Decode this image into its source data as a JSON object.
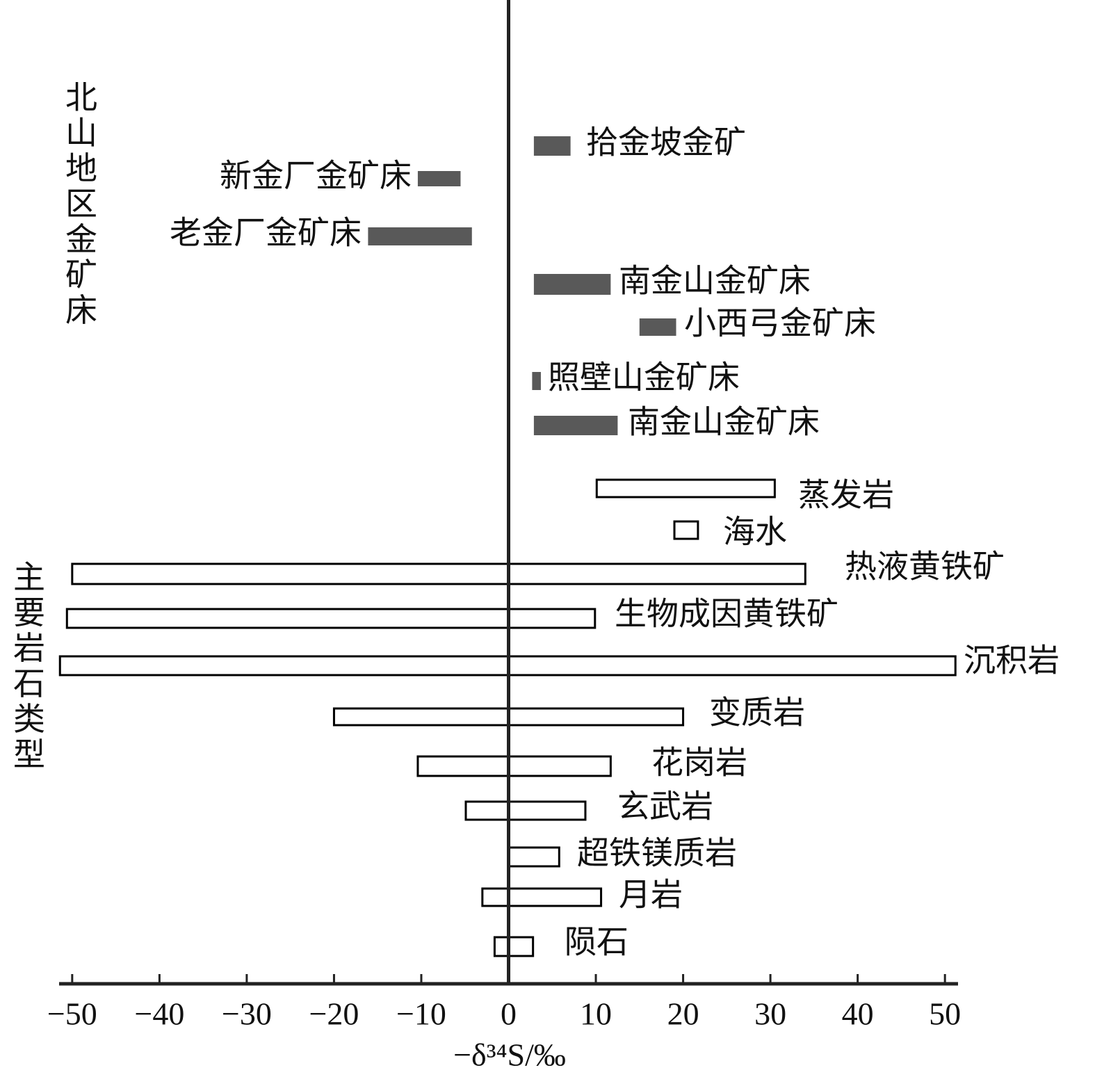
{
  "chart_data": {
    "type": "range-bar",
    "xlabel": "−δ³⁴S/‰",
    "xlim": [
      -51.5,
      51.5
    ],
    "xticks": [
      {
        "value": -50,
        "label": "−50"
      },
      {
        "value": -40,
        "label": "−40"
      },
      {
        "value": -30,
        "label": "−30"
      },
      {
        "value": -20,
        "label": "−20"
      },
      {
        "value": -10,
        "label": "−10"
      },
      0,
      10,
      20,
      30,
      40,
      50
    ],
    "groups": [
      {
        "name": "北山地区金矿床",
        "style": "filled",
        "color": "#595959",
        "items": [
          {
            "label": "拾金坡金矿",
            "low": 2.9,
            "high": 7.1
          },
          {
            "label": "新金厂金矿床",
            "low": -10.4,
            "high": -5.5
          },
          {
            "label": "老金厂金矿床",
            "low": -16.1,
            "high": -4.2
          },
          {
            "label": "南金山金矿床",
            "low": 2.9,
            "high": 11.7
          },
          {
            "label": "小西弓金矿床",
            "low": 15.0,
            "high": 19.2
          },
          {
            "label": "照壁山金矿床",
            "low": 2.7,
            "high": 3.7
          },
          {
            "label": "南金山金矿床",
            "low": 2.9,
            "high": 12.5
          }
        ]
      },
      {
        "name": "主要岩石类型",
        "style": "open",
        "color": "#000000",
        "items": [
          {
            "label": "蒸发岩",
            "low": 10.1,
            "high": 30.5
          },
          {
            "label": "海水",
            "low": 19.0,
            "high": 21.7
          },
          {
            "label": "热液黄铁矿",
            "low": -50.0,
            "high": 34.0
          },
          {
            "label": "生物成因黄铁矿",
            "low": -50.6,
            "high": 9.9
          },
          {
            "label": "沉积岩",
            "low": -51.4,
            "high": 51.2
          },
          {
            "label": "变质岩",
            "low": -20.0,
            "high": 20.0
          },
          {
            "label": "花岗岩",
            "low": -10.4,
            "high": 11.7
          },
          {
            "label": "玄武岩",
            "low": -4.9,
            "high": 8.8
          },
          {
            "label": "超铁镁质岩",
            "low": 0,
            "high": 5.8
          },
          {
            "label": "月岩",
            "low": -3.0,
            "high": 10.6
          },
          {
            "label": "陨石",
            "low": -1.6,
            "high": 2.8
          }
        ]
      }
    ]
  }
}
